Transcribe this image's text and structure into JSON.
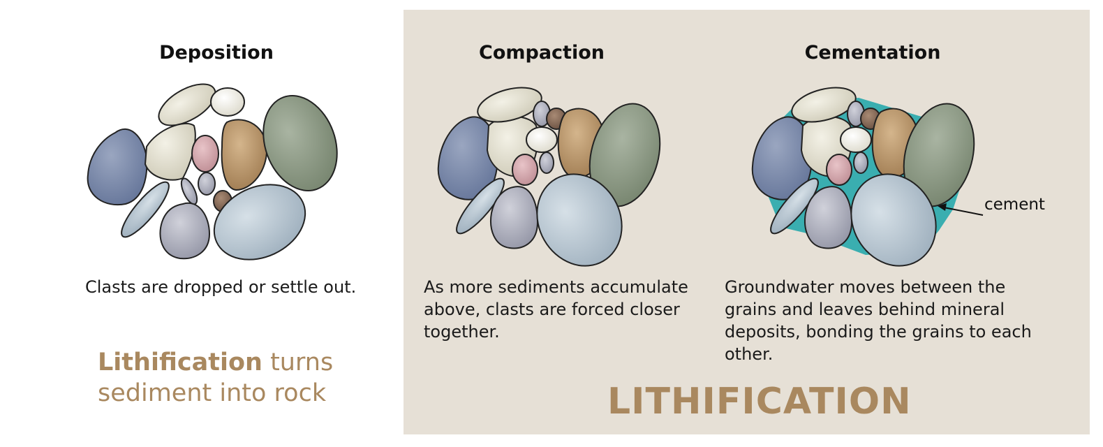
{
  "panels": {
    "deposition": {
      "title": "Deposition",
      "caption": "Clasts are dropped or settle out."
    },
    "compaction": {
      "title": "Compaction",
      "caption": "As more sediments accumulate above, clasts are forced closer together."
    },
    "cementation": {
      "title": "Cementation",
      "caption": "Groundwater moves between the grains and leaves behind mineral deposits, bonding the grains to each other."
    }
  },
  "tagline": {
    "bold": "Lithification",
    "rest": " turns sediment into rock"
  },
  "lithification_label": "LITHIFICATION",
  "cement_label": "cement",
  "colors": {
    "accent": "#a9885f",
    "panel_bg": "#e6e0d6",
    "cement": "#3aaeb0",
    "clast_blue": "#7585a6",
    "clast_cream": "#e3e0cf",
    "clast_white": "#efede4",
    "clast_tan": "#bd9a6e",
    "clast_green": "#8d9a86",
    "clast_pink": "#d3a7ad",
    "clast_lightblue": "#bccad4",
    "clast_grey": "#b3b5c1"
  }
}
